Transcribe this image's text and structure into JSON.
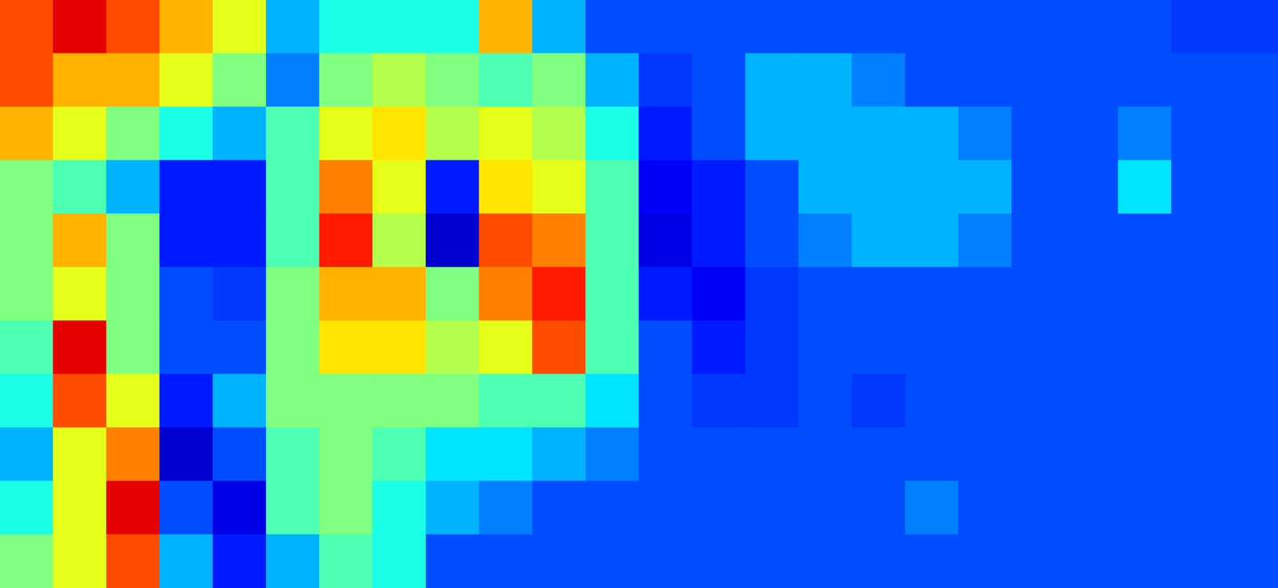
{
  "chart_data": {
    "type": "heatmap",
    "zlim": [
      0,
      10
    ],
    "tick_labels": false,
    "z": [
      [
        8,
        9,
        8,
        7,
        6,
        3,
        4,
        4,
        4,
        7,
        3,
        2,
        2,
        2,
        2,
        2,
        2,
        2,
        2,
        2,
        2,
        2,
        1.8,
        1.8
      ],
      [
        8,
        7,
        7,
        6,
        5,
        2.5,
        5,
        5.5,
        5,
        4.5,
        5,
        3,
        1.8,
        2,
        3,
        3,
        2.5,
        2,
        2,
        2,
        2,
        2,
        2,
        2
      ],
      [
        7,
        6,
        5,
        4,
        3,
        4.5,
        6,
        6.5,
        5.5,
        6,
        5.5,
        4,
        1.5,
        2,
        3,
        3,
        3,
        3,
        2.5,
        2,
        2,
        2.5,
        2,
        2
      ],
      [
        5,
        4.5,
        3,
        1.5,
        1.5,
        4.5,
        7.5,
        6,
        1.5,
        6.5,
        6,
        4.5,
        1.2,
        1.5,
        2,
        3,
        3,
        3,
        3,
        2,
        2,
        3.5,
        2,
        2
      ],
      [
        5,
        7,
        5,
        1.5,
        1.5,
        4.5,
        8.5,
        5.5,
        0.8,
        8,
        7.5,
        4.5,
        1,
        1.5,
        2,
        2.5,
        3,
        3,
        2.5,
        2,
        2,
        2,
        2,
        2
      ],
      [
        5,
        6,
        5,
        2,
        1.8,
        5,
        7,
        7,
        5,
        7.5,
        8.5,
        4.5,
        1.5,
        1.2,
        1.8,
        2,
        2,
        2,
        2,
        2,
        2,
        2,
        2,
        2
      ],
      [
        4.5,
        9,
        5,
        2,
        2,
        5,
        6.5,
        6.5,
        5.5,
        6,
        8,
        4.5,
        2,
        1.5,
        1.8,
        2,
        2,
        2,
        2,
        2,
        2,
        2,
        2,
        2
      ],
      [
        4,
        8,
        6,
        1.5,
        3,
        5,
        5,
        5,
        5,
        4.5,
        4.5,
        3.5,
        2,
        1.8,
        1.8,
        2,
        1.8,
        2,
        2,
        2,
        2,
        2,
        2,
        2
      ],
      [
        3,
        6,
        7.5,
        0.8,
        2,
        4.5,
        5,
        4.5,
        3.5,
        3.5,
        3,
        2.5,
        2,
        2,
        2,
        2,
        2,
        2,
        2,
        2,
        2,
        2,
        2,
        2
      ],
      [
        4,
        6,
        9,
        2,
        1,
        4.5,
        5,
        4,
        3,
        2.5,
        2,
        2,
        2,
        2,
        2,
        2,
        2,
        2.5,
        2,
        2,
        2,
        2,
        2,
        2
      ],
      [
        5,
        6,
        8,
        3,
        1.5,
        3,
        4.5,
        4,
        2,
        2,
        2,
        2,
        2,
        2,
        2,
        2,
        2,
        2,
        2,
        2,
        2,
        2,
        2,
        2
      ]
    ]
  }
}
